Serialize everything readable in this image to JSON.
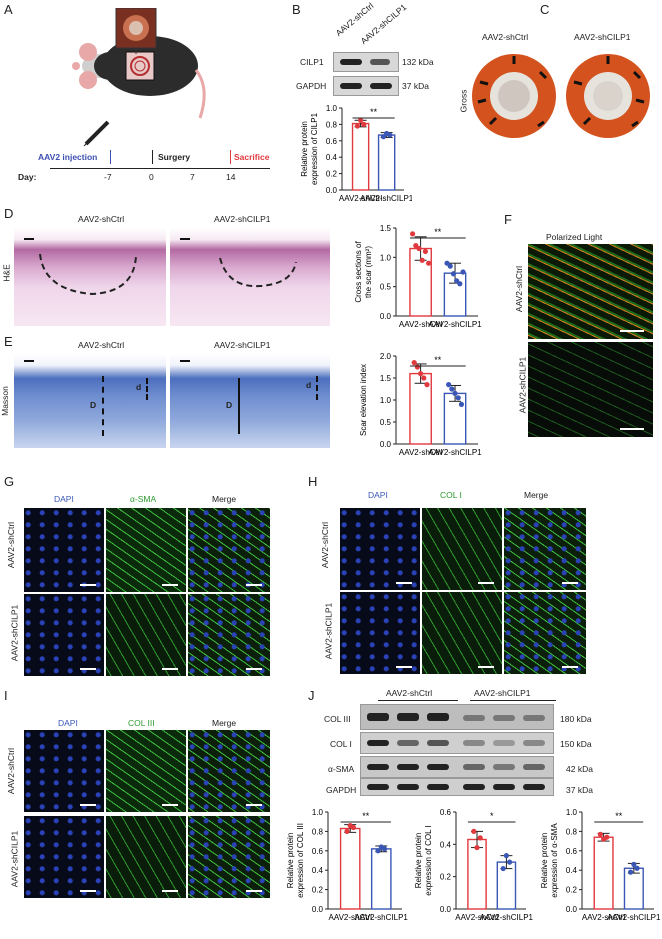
{
  "panels": {
    "A": "A",
    "B": "B",
    "C": "C",
    "D": "D",
    "E": "E",
    "F": "F",
    "G": "G",
    "H": "H",
    "I": "I",
    "J": "J"
  },
  "groups": {
    "ctrl": "AAV2-shCtrl",
    "cilp1": "AAV2-shCILP1",
    "cilp1_alt": "AAV2-shCILP1"
  },
  "timeline": {
    "injection": "AAV2 injection",
    "surgery": "Surgery",
    "sacrifice": "Sacrifice",
    "day_label": "Day:",
    "days": [
      "-7",
      "0",
      "7",
      "14"
    ]
  },
  "blotB": {
    "lanes": [
      "AAV2-shCtrl",
      "AAV2-shCILP1"
    ],
    "rows": [
      {
        "name": "CILP1",
        "kda": "132 kDa"
      },
      {
        "name": "GAPDH",
        "kda": "37 kDa"
      }
    ]
  },
  "gross_label": "Gross",
  "stain_labels": {
    "he": "H&E",
    "masson": "Masson",
    "D": "D",
    "d": "d"
  },
  "polarized": "Polarized Light",
  "if": {
    "dapi": "DAPI",
    "asma": "α-SMA",
    "col1": "COL I",
    "col3": "COL III",
    "merge": "Merge"
  },
  "blotJ": {
    "lanes_ctrl": "AAV2-shCtrl",
    "lanes_cilp1": "AAV2-shCILP1",
    "rows": [
      {
        "name": "COL III",
        "kda": "180 kDa"
      },
      {
        "name": "COL I",
        "kda": "150 kDa"
      },
      {
        "name": "α-SMA",
        "kda": "42 kDa"
      },
      {
        "name": "GAPDH",
        "kda": "37 kDa"
      }
    ]
  },
  "chart_data": [
    {
      "id": "B",
      "type": "bar",
      "categories": [
        "AAV2-shCtrl",
        "AAV2-shCILP1"
      ],
      "values": [
        0.81,
        0.67
      ],
      "errors": [
        0.04,
        0.03
      ],
      "points": [
        [
          0.78,
          0.85,
          0.8
        ],
        [
          0.65,
          0.69,
          0.67
        ]
      ],
      "ylabel": "Relative protein expression of CILP1",
      "ylim": [
        0.0,
        1.0
      ],
      "yticks": [
        "0.0",
        "0.2",
        "0.4",
        "0.6",
        "0.8",
        "1.0"
      ],
      "sig": "**"
    },
    {
      "id": "D",
      "type": "bar",
      "categories": [
        "AAV2-shCtrl",
        "AAV2-shCILP1"
      ],
      "values": [
        1.15,
        0.73
      ],
      "errors": [
        0.2,
        0.17
      ],
      "points": [
        [
          1.4,
          1.2,
          1.15,
          0.95,
          1.1,
          0.9
        ],
        [
          0.9,
          0.85,
          0.72,
          0.6,
          0.55,
          0.75
        ]
      ],
      "ylabel": "Cross sections of the scar (mm²)",
      "ylim": [
        0.0,
        1.5
      ],
      "yticks": [
        "0.0",
        "0.5",
        "1.0",
        "1.5"
      ],
      "sig": "**"
    },
    {
      "id": "E",
      "type": "bar",
      "categories": [
        "AAV2-shCtrl",
        "AAV2-shCILP1"
      ],
      "values": [
        1.6,
        1.15
      ],
      "errors": [
        0.22,
        0.18
      ],
      "points": [
        [
          1.85,
          1.75,
          1.6,
          1.5,
          1.35
        ],
        [
          1.35,
          1.25,
          1.15,
          1.05,
          0.9
        ]
      ],
      "ylabel": "Scar elevation index",
      "ylim": [
        0.0,
        2.0
      ],
      "yticks": [
        "0.0",
        "0.5",
        "1.0",
        "1.5",
        "2.0"
      ],
      "sig": "**"
    },
    {
      "id": "J1",
      "type": "bar",
      "categories": [
        "AAV2-shCtrl",
        "AAV2-shCILP1"
      ],
      "values": [
        0.83,
        0.62
      ],
      "errors": [
        0.04,
        0.03
      ],
      "points": [
        [
          0.8,
          0.86,
          0.84
        ],
        [
          0.6,
          0.64,
          0.62
        ]
      ],
      "ylabel": "Relative protein expression of COL III",
      "ylim": [
        0.0,
        1.0
      ],
      "yticks": [
        "0.0",
        "0.2",
        "0.4",
        "0.6",
        "0.8",
        "1.0"
      ],
      "sig": "**"
    },
    {
      "id": "J2",
      "type": "bar",
      "categories": [
        "AAV2-shCtrl",
        "AAV2-shCILP1"
      ],
      "values": [
        0.43,
        0.29
      ],
      "errors": [
        0.05,
        0.04
      ],
      "points": [
        [
          0.48,
          0.38,
          0.44
        ],
        [
          0.25,
          0.33,
          0.29
        ]
      ],
      "ylabel": "Relative protein expression of COL I",
      "ylim": [
        0.0,
        0.6
      ],
      "yticks": [
        "0.0",
        "0.2",
        "0.4",
        "0.6"
      ],
      "sig": "*"
    },
    {
      "id": "J3",
      "type": "bar",
      "categories": [
        "AAV2-shCtrl",
        "AAV2-shCILP1"
      ],
      "values": [
        0.74,
        0.42
      ],
      "errors": [
        0.04,
        0.05
      ],
      "points": [
        [
          0.77,
          0.72,
          0.74
        ],
        [
          0.38,
          0.46,
          0.42
        ]
      ],
      "ylabel": "Relative protein expression of α-SMA",
      "ylim": [
        0.0,
        1.0
      ],
      "yticks": [
        "0.0",
        "0.2",
        "0.4",
        "0.6",
        "0.8",
        "1.0"
      ],
      "sig": "**"
    }
  ],
  "colors": {
    "ctrl": "#e0393e",
    "cilp1": "#3a57b5",
    "injection": "#3d4fb0",
    "sacrifice": "#e0393e"
  }
}
